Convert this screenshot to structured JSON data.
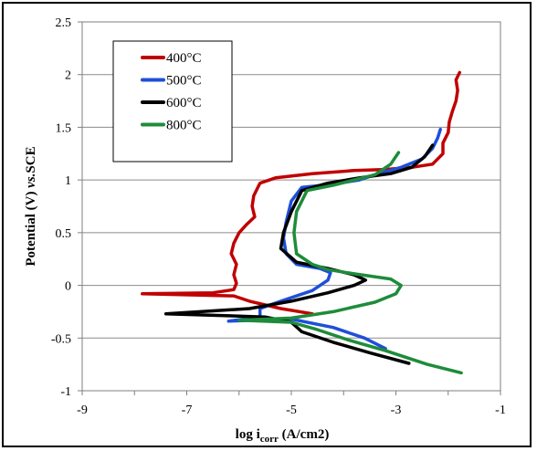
{
  "chart_data": {
    "type": "line",
    "title": "",
    "xlabel_main": "log i",
    "xlabel_sub": "corr",
    "xlabel_unit": " (A/cm2)",
    "ylabel_main": "Potential (V) ",
    "ylabel_italic": "vs.",
    "ylabel_tail": "SCE",
    "xlim": [
      -9,
      -1
    ],
    "ylim": [
      -1,
      2.5
    ],
    "x_ticks": [
      -9,
      -7,
      -5,
      -3,
      -1
    ],
    "x_tick_labels": [
      "-9",
      "-7",
      "-5",
      "-3",
      "-1"
    ],
    "y_ticks": [
      -1,
      -0.5,
      0,
      0.5,
      1,
      1.5,
      2,
      2.5
    ],
    "y_tick_labels": [
      "-1",
      "-0.5",
      "0",
      "0.5",
      "1",
      "1.5",
      "2",
      "2.5"
    ],
    "grid": "horizontal",
    "legend_position": "top-left",
    "series": [
      {
        "name": "400°C",
        "color": "#c00000",
        "points": [
          [
            -4.6,
            -0.27
          ],
          [
            -5.2,
            -0.22
          ],
          [
            -5.8,
            -0.15
          ],
          [
            -6.1,
            -0.1
          ],
          [
            -7.85,
            -0.08
          ],
          [
            -6.5,
            -0.07
          ],
          [
            -6.1,
            -0.04
          ],
          [
            -6.05,
            0.02
          ],
          [
            -6.1,
            0.1
          ],
          [
            -6.05,
            0.2
          ],
          [
            -6.15,
            0.3
          ],
          [
            -6.1,
            0.4
          ],
          [
            -6.0,
            0.5
          ],
          [
            -5.85,
            0.58
          ],
          [
            -5.7,
            0.65
          ],
          [
            -5.75,
            0.75
          ],
          [
            -5.72,
            0.85
          ],
          [
            -5.65,
            0.92
          ],
          [
            -5.6,
            0.97
          ],
          [
            -5.3,
            1.02
          ],
          [
            -4.6,
            1.06
          ],
          [
            -3.8,
            1.09
          ],
          [
            -3.2,
            1.1
          ],
          [
            -2.7,
            1.12
          ],
          [
            -2.3,
            1.15
          ],
          [
            -2.1,
            1.25
          ],
          [
            -2.1,
            1.35
          ],
          [
            -2.0,
            1.45
          ],
          [
            -1.98,
            1.55
          ],
          [
            -1.92,
            1.65
          ],
          [
            -1.85,
            1.75
          ],
          [
            -1.82,
            1.85
          ],
          [
            -1.85,
            1.95
          ],
          [
            -1.78,
            2.02
          ]
        ]
      },
      {
        "name": "500°C",
        "color": "#1f4fd8",
        "points": [
          [
            -3.2,
            -0.6
          ],
          [
            -3.6,
            -0.5
          ],
          [
            -4.2,
            -0.4
          ],
          [
            -5.0,
            -0.32
          ],
          [
            -6.2,
            -0.34
          ],
          [
            -5.6,
            -0.3
          ],
          [
            -5.6,
            -0.22
          ],
          [
            -5.2,
            -0.15
          ],
          [
            -4.6,
            -0.05
          ],
          [
            -4.3,
            0.05
          ],
          [
            -4.25,
            0.12
          ],
          [
            -4.45,
            0.16
          ],
          [
            -4.9,
            0.2
          ],
          [
            -5.1,
            0.3
          ],
          [
            -5.15,
            0.45
          ],
          [
            -5.1,
            0.6
          ],
          [
            -5.0,
            0.8
          ],
          [
            -4.8,
            0.93
          ],
          [
            -4.2,
            0.96
          ],
          [
            -3.7,
            1.0
          ],
          [
            -3.4,
            1.05
          ],
          [
            -2.9,
            1.12
          ],
          [
            -2.5,
            1.2
          ],
          [
            -2.3,
            1.3
          ],
          [
            -2.2,
            1.4
          ],
          [
            -2.15,
            1.48
          ]
        ]
      },
      {
        "name": "600°C",
        "color": "#000000",
        "points": [
          [
            -2.75,
            -0.74
          ],
          [
            -3.5,
            -0.64
          ],
          [
            -4.2,
            -0.54
          ],
          [
            -4.8,
            -0.44
          ],
          [
            -5.0,
            -0.35
          ],
          [
            -5.5,
            -0.3
          ],
          [
            -7.4,
            -0.27
          ],
          [
            -5.8,
            -0.22
          ],
          [
            -5.0,
            -0.15
          ],
          [
            -4.3,
            -0.07
          ],
          [
            -3.8,
            0.0
          ],
          [
            -3.58,
            0.05
          ],
          [
            -3.8,
            0.1
          ],
          [
            -4.3,
            0.16
          ],
          [
            -4.9,
            0.22
          ],
          [
            -5.2,
            0.35
          ],
          [
            -5.15,
            0.5
          ],
          [
            -5.0,
            0.7
          ],
          [
            -4.8,
            0.9
          ],
          [
            -4.3,
            0.97
          ],
          [
            -3.7,
            1.02
          ],
          [
            -3.1,
            1.06
          ],
          [
            -2.7,
            1.12
          ],
          [
            -2.45,
            1.22
          ],
          [
            -2.3,
            1.33
          ]
        ]
      },
      {
        "name": "800°C",
        "color": "#1e8c3a",
        "points": [
          [
            -1.75,
            -0.83
          ],
          [
            -2.4,
            -0.75
          ],
          [
            -3.2,
            -0.62
          ],
          [
            -3.9,
            -0.52
          ],
          [
            -4.5,
            -0.42
          ],
          [
            -5.0,
            -0.35
          ],
          [
            -6.0,
            -0.33
          ],
          [
            -5.0,
            -0.31
          ],
          [
            -4.2,
            -0.25
          ],
          [
            -3.4,
            -0.16
          ],
          [
            -3.0,
            -0.08
          ],
          [
            -2.9,
            0.0
          ],
          [
            -3.1,
            0.06
          ],
          [
            -3.8,
            0.11
          ],
          [
            -4.3,
            0.15
          ],
          [
            -4.6,
            0.2
          ],
          [
            -4.9,
            0.3
          ],
          [
            -4.95,
            0.5
          ],
          [
            -4.9,
            0.7
          ],
          [
            -4.7,
            0.9
          ],
          [
            -4.2,
            0.95
          ],
          [
            -3.8,
            1.0
          ],
          [
            -3.4,
            1.05
          ],
          [
            -3.1,
            1.15
          ],
          [
            -2.95,
            1.26
          ]
        ]
      }
    ]
  }
}
